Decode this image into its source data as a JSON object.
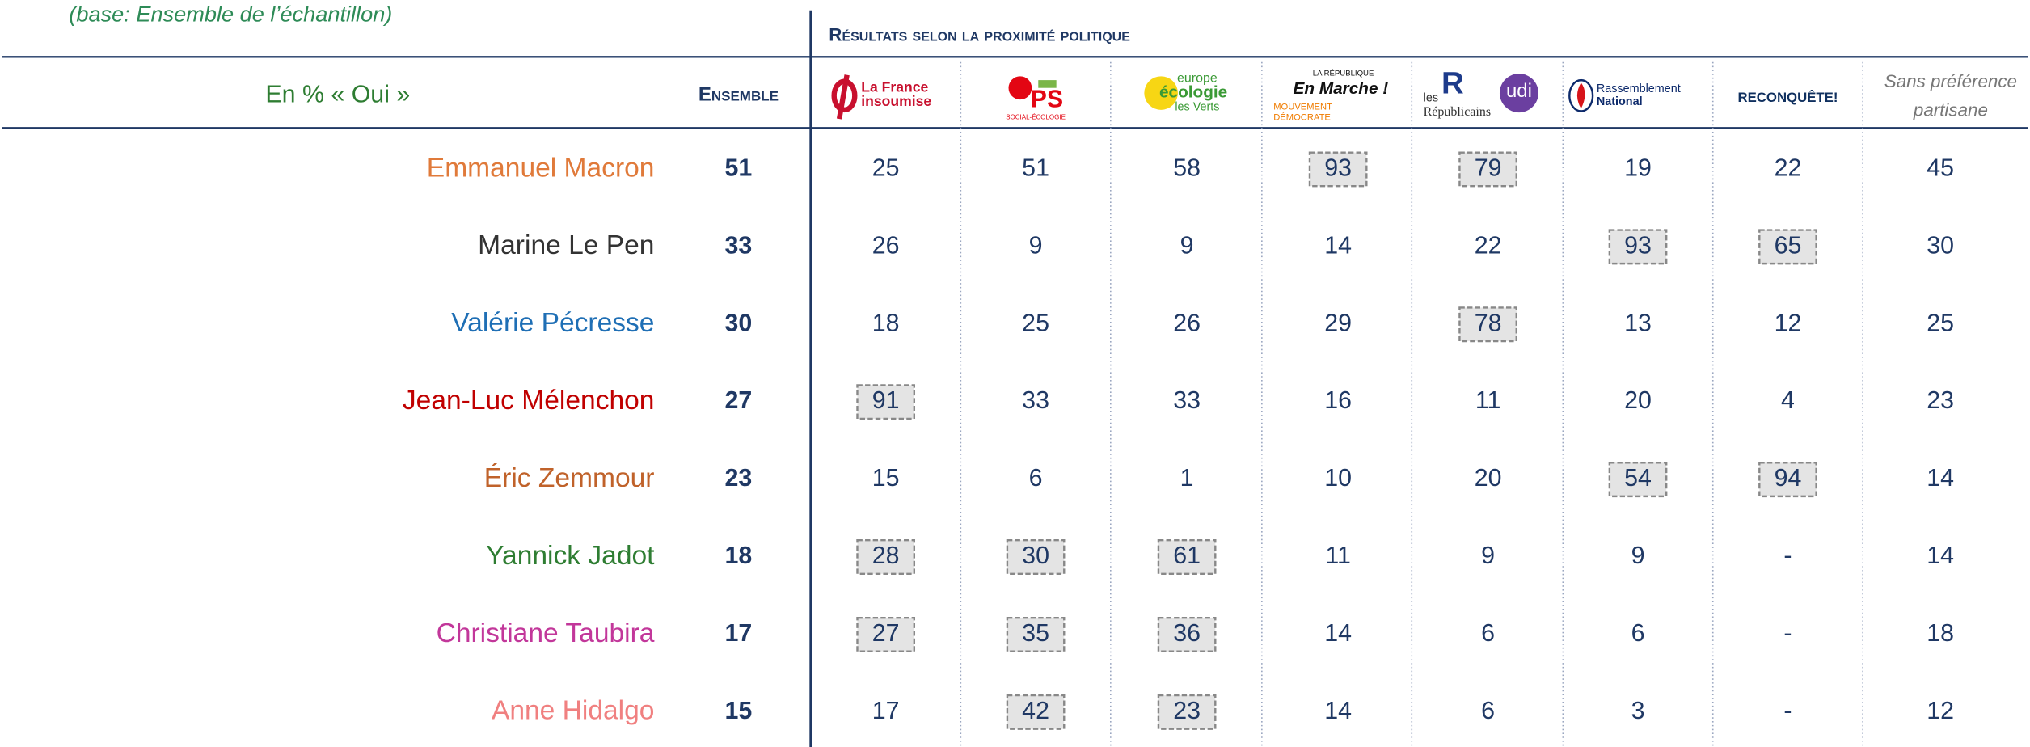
{
  "note": "(base: Ensemble de l’échantillon)",
  "header": "Résultats selon la proximité politique",
  "row_header": "En % « Oui »",
  "total_header": "Ensemble",
  "parties": [
    {
      "lines": [
        "La France",
        "insoumise"
      ],
      "color": "#c8102e"
    },
    {
      "lines": [
        "PS",
        "SOCIAL-ÉCOLOGIE"
      ],
      "color": "#e30613"
    },
    {
      "lines": [
        "europe",
        "écologie",
        "les Verts"
      ],
      "color": "#3a9a35"
    },
    {
      "lines": [
        "LA RÉPUBLIQUE",
        "En Marche !",
        "MOUVEMENT",
        "DÉMOCRATE"
      ],
      "color": "#111111"
    },
    {
      "lines": [
        "les",
        "R",
        "Républicains",
        "udi"
      ],
      "color": "#1d3b8b"
    },
    {
      "lines": [
        "Rassemblement",
        "National"
      ],
      "color": "#0d2a6b"
    },
    {
      "lines": [
        "RECONQUÊTE!"
      ],
      "color": "#10305f"
    },
    {
      "lines": [
        "Sans préférence",
        "partisane"
      ],
      "color": "#777777"
    }
  ],
  "rows": [
    {
      "name": "Emmanuel Macron",
      "color": "#e07a3a",
      "total": 51,
      "values": [
        25,
        51,
        58,
        93,
        79,
        19,
        22,
        45
      ],
      "highlight": [
        false,
        false,
        false,
        true,
        true,
        false,
        false,
        false
      ]
    },
    {
      "name": "Marine Le Pen",
      "color": "#333333",
      "total": 33,
      "values": [
        26,
        9,
        9,
        14,
        22,
        93,
        65,
        30
      ],
      "highlight": [
        false,
        false,
        false,
        false,
        false,
        true,
        true,
        false
      ]
    },
    {
      "name": "Valérie Pécresse",
      "color": "#1f6fb5",
      "total": 30,
      "values": [
        18,
        25,
        26,
        29,
        78,
        13,
        12,
        25
      ],
      "highlight": [
        false,
        false,
        false,
        false,
        true,
        false,
        false,
        false
      ]
    },
    {
      "name": "Jean-Luc Mélenchon",
      "color": "#c00000",
      "total": 27,
      "values": [
        91,
        33,
        33,
        16,
        11,
        20,
        4,
        23
      ],
      "highlight": [
        true,
        false,
        false,
        false,
        false,
        false,
        false,
        false
      ]
    },
    {
      "name": "Éric Zemmour",
      "color": "#c0622a",
      "total": 23,
      "values": [
        15,
        6,
        1,
        10,
        20,
        54,
        94,
        14
      ],
      "highlight": [
        false,
        false,
        false,
        false,
        false,
        true,
        true,
        false
      ]
    },
    {
      "name": "Yannick Jadot",
      "color": "#2e7d32",
      "total": 18,
      "values": [
        28,
        30,
        61,
        11,
        9,
        9,
        "-",
        14
      ],
      "highlight": [
        true,
        true,
        true,
        false,
        false,
        false,
        false,
        false
      ]
    },
    {
      "name": "Christiane Taubira",
      "color": "#c2379a",
      "total": 17,
      "values": [
        27,
        35,
        36,
        14,
        6,
        6,
        "-",
        18
      ],
      "highlight": [
        true,
        true,
        true,
        false,
        false,
        false,
        false,
        false
      ]
    },
    {
      "name": "Anne Hidalgo",
      "color": "#f08080",
      "total": 15,
      "values": [
        17,
        42,
        23,
        14,
        6,
        3,
        "-",
        12
      ],
      "highlight": [
        false,
        true,
        true,
        false,
        false,
        false,
        false,
        false
      ]
    }
  ]
}
